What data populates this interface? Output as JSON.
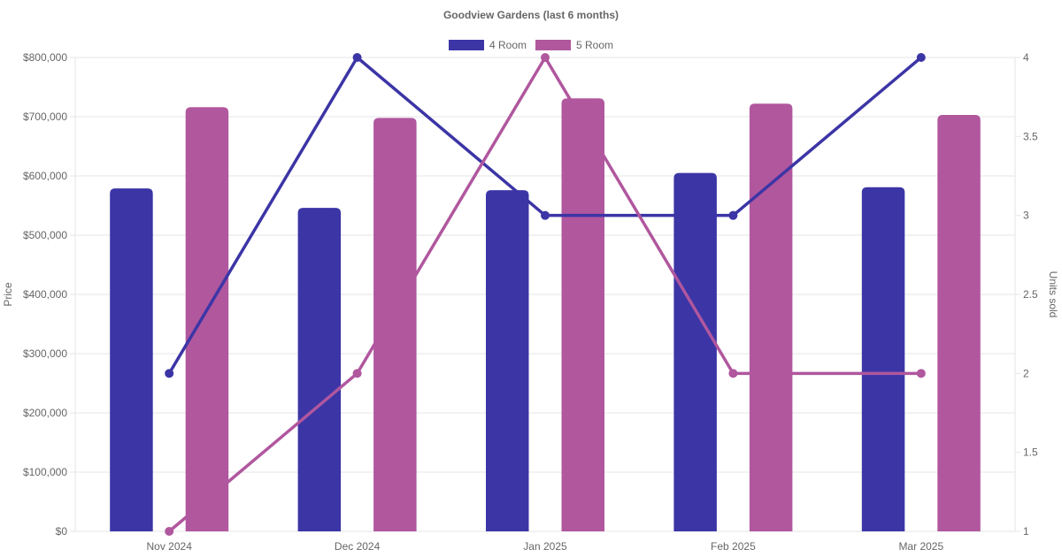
{
  "chart_data": {
    "type": "combo-bar-line-dual-axis",
    "title": "Goodview Gardens (last 6 months)",
    "categories": [
      "Nov 2024",
      "Dec 2024",
      "Jan 2025",
      "Feb 2025",
      "Mar 2025"
    ],
    "bar_series": [
      {
        "name": "4 Room",
        "color": "#3c35a6",
        "axis": "left",
        "values": [
          579000,
          546000,
          576000,
          605000,
          581000
        ]
      },
      {
        "name": "5 Room",
        "color": "#b0579e",
        "axis": "left",
        "values": [
          716000,
          698000,
          731000,
          722000,
          703000
        ]
      }
    ],
    "line_series": [
      {
        "name": "4 Room",
        "color": "#3c35a6",
        "axis": "right",
        "values": [
          2,
          4,
          3,
          3,
          4
        ]
      },
      {
        "name": "5 Room",
        "color": "#b0579e",
        "axis": "right",
        "values": [
          1,
          2,
          4,
          2,
          2
        ]
      }
    ],
    "left_axis": {
      "label": "Price",
      "min": 0,
      "max": 800000,
      "step": 100000,
      "tick_labels": [
        "$0",
        "$100,000",
        "$200,000",
        "$300,000",
        "$400,000",
        "$500,000",
        "$600,000",
        "$700,000",
        "$800,000"
      ]
    },
    "right_axis": {
      "label": "Units sold",
      "min": 1,
      "max": 4,
      "step": 0.5,
      "tick_labels": [
        "1",
        "1.5",
        "2",
        "2.5",
        "3",
        "3.5",
        "4"
      ]
    },
    "legend_position": "top",
    "grid": {
      "horizontal": true,
      "vertical": false,
      "color": "#e5e5e5"
    },
    "text_color": "#666666",
    "background": "#ffffff"
  }
}
